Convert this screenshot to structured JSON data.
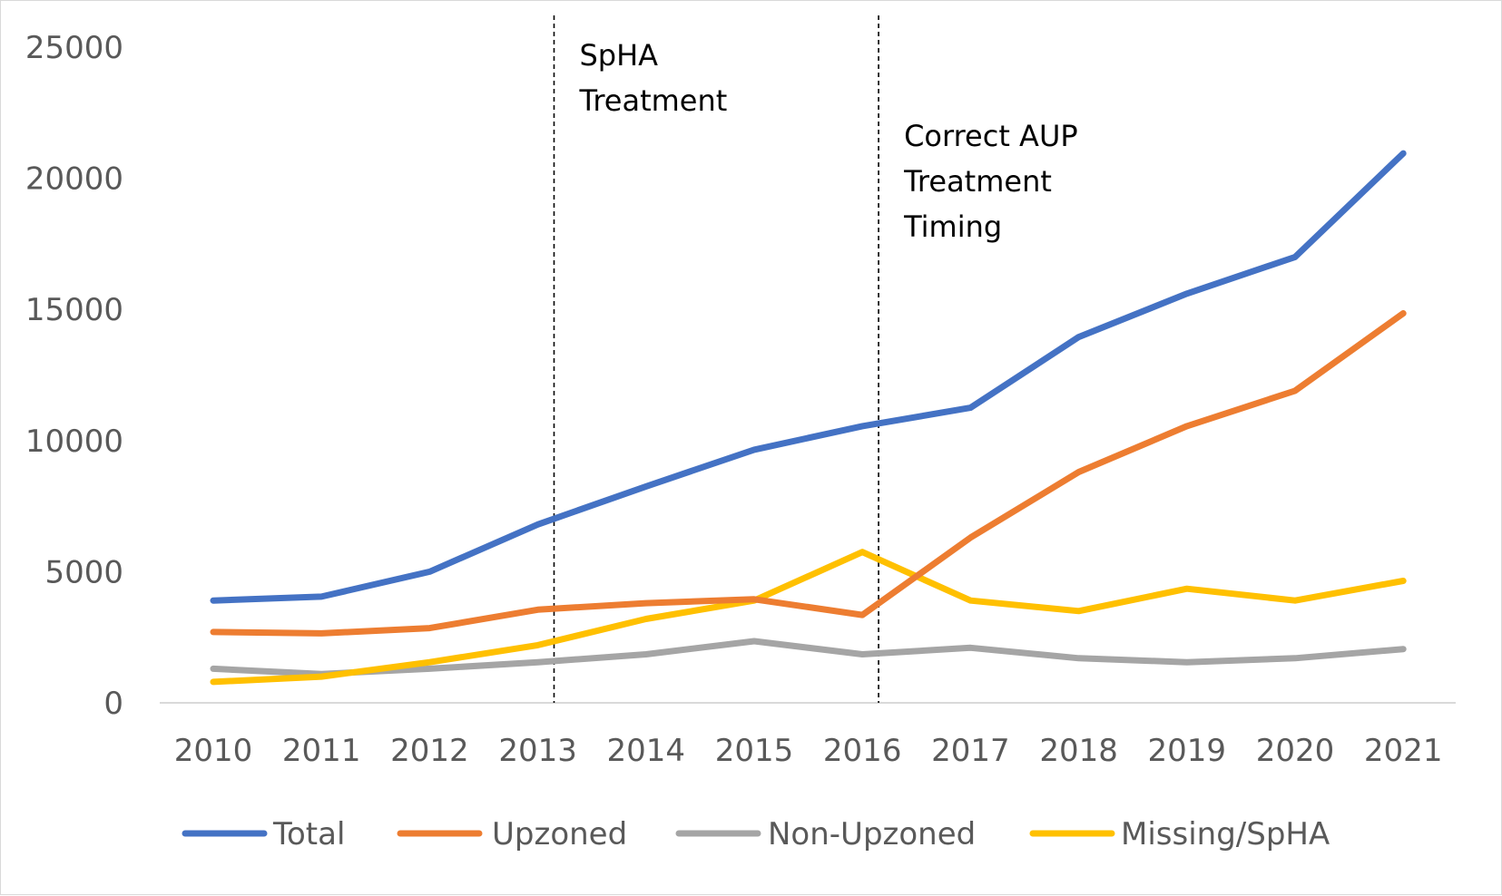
{
  "chart_data": {
    "type": "line",
    "title": "",
    "xlabel": "",
    "ylabel": "",
    "categories": [
      "2010",
      "2011",
      "2012",
      "2013",
      "2014",
      "2015",
      "2016",
      "2017",
      "2018",
      "2019",
      "2020",
      "2021"
    ],
    "ylim": [
      0,
      25000
    ],
    "yticks": [
      "0",
      "5000",
      "10000",
      "15000",
      "20000",
      "25000"
    ],
    "grid": false,
    "legend_position": "bottom",
    "series": [
      {
        "name": "Total",
        "color": "#4472C4",
        "values": [
          3900,
          4050,
          5000,
          6800,
          8250,
          9650,
          10550,
          11250,
          13950,
          15600,
          17000,
          20950
        ]
      },
      {
        "name": "Upzoned",
        "color": "#ED7D31",
        "values": [
          2700,
          2650,
          2850,
          3550,
          3800,
          3950,
          3350,
          6300,
          8800,
          10550,
          11900,
          14850
        ]
      },
      {
        "name": "Non-Upzoned",
        "color": "#A5A5A5",
        "values": [
          1300,
          1100,
          1300,
          1550,
          1850,
          2350,
          1850,
          2100,
          1700,
          1550,
          1700,
          2050
        ]
      },
      {
        "name": "Missing/SpHA",
        "color": "#FFC000",
        "values": [
          800,
          1000,
          1550,
          2200,
          3200,
          3900,
          5750,
          3900,
          3500,
          4350,
          3900,
          4650
        ]
      }
    ],
    "annotations": [
      {
        "at": "2013",
        "lines": [
          "SpHA",
          "Treatment"
        ]
      },
      {
        "at": "2016",
        "lines": [
          "Correct AUP",
          "Treatment",
          "Timing"
        ]
      }
    ]
  }
}
